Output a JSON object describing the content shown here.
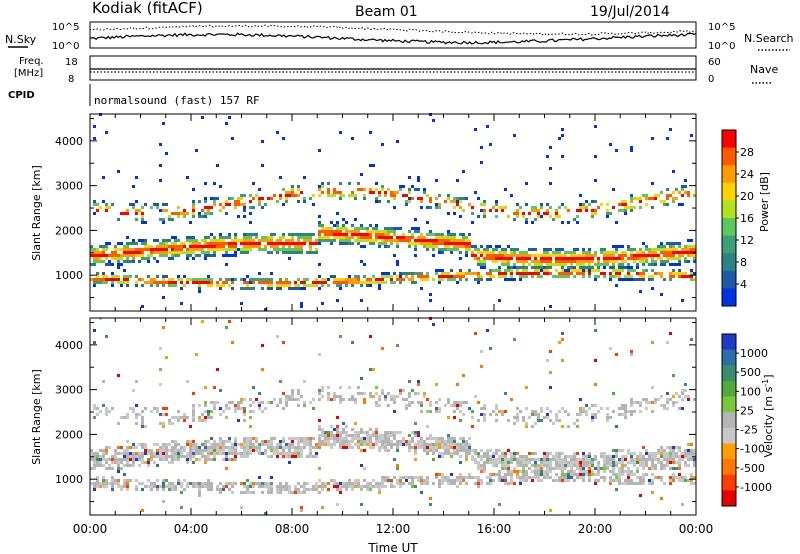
{
  "header": {
    "station": "Kodiak (fitACF)",
    "beam": "Beam 01",
    "date": "19/Jul/2014"
  },
  "top_panels": {
    "nsky_label": "N.Sky",
    "nsky_ticks": [
      "10^5",
      "10^0"
    ],
    "nsearch_label": "N.Search",
    "nsearch_ticks": [
      "10^5",
      "10^0"
    ],
    "freq_label": "Freq.",
    "freq_unit": "[MHz]",
    "freq_ticks": [
      "18",
      "8"
    ],
    "nave_label": "Nave",
    "nave_ticks": [
      "60",
      "0"
    ],
    "cpid_label": "CPID",
    "cpid_text": "normalsound (fast) 157 RF"
  },
  "chart_data": [
    {
      "type": "heatmap",
      "name": "power",
      "ylabel": "Slant Range [km]",
      "ylim": [
        200,
        4600
      ],
      "yticks": [
        1000,
        2000,
        3000,
        4000
      ],
      "xlim": [
        0,
        24
      ],
      "colorbar": {
        "label": "Power [dB]",
        "ticks": [
          "28",
          "24",
          "20",
          "16",
          "12",
          "8",
          "4"
        ],
        "colors": [
          "#ff0000",
          "#ff5a00",
          "#ff9c00",
          "#ffd200",
          "#b4e11e",
          "#5ac85a",
          "#3ca078",
          "#2d8282",
          "#1e5aaa",
          "#0032e6"
        ]
      }
    },
    {
      "type": "heatmap",
      "name": "velocity",
      "ylabel": "Slant Range [km]",
      "ylim": [
        200,
        4600
      ],
      "yticks": [
        1000,
        2000,
        3000,
        4000
      ],
      "xlim": [
        0,
        24
      ],
      "colorbar": {
        "label": "Velocity [m s",
        "label_sup": "-1",
        "label_end": "]",
        "ticks": [
          "1000",
          "500",
          "100",
          "25",
          "-25",
          "-100",
          "-500",
          "-1000"
        ],
        "colors": [
          "#1e3cc8",
          "#2d6eaa",
          "#3c8c6e",
          "#50aa3c",
          "#78c83c",
          "#b4b4b4",
          "#c8c8c8",
          "#ffa000",
          "#ff7800",
          "#ff3c00",
          "#e60000"
        ]
      }
    }
  ],
  "xaxis": {
    "label": "Time UT",
    "ticks": [
      "00:00",
      "04:00",
      "08:00",
      "12:00",
      "16:00",
      "20:00",
      "00:00"
    ]
  }
}
